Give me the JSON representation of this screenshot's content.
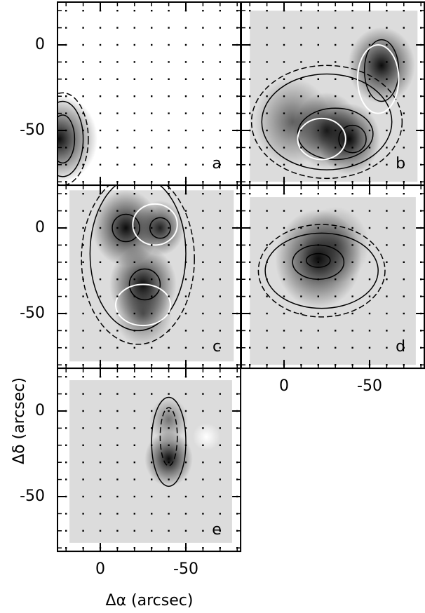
{
  "chart_data": {
    "type": "image-grid",
    "xlabel": "Δα (arcsec)",
    "ylabel": "Δδ (arcsec)",
    "xlim": [
      25,
      -82
    ],
    "ylim": [
      -82,
      25
    ],
    "xticks": [
      0,
      -50
    ],
    "yticks": [
      0,
      -50
    ],
    "xminorticks": [
      20,
      10,
      0,
      -10,
      -20,
      -30,
      -40,
      -50,
      -60,
      -70,
      -80
    ],
    "yminorticks": [
      20,
      10,
      0,
      -10,
      -20,
      -30,
      -40,
      -50,
      -60,
      -70,
      -80
    ],
    "grid": "dots",
    "panels": [
      {
        "label": "a",
        "x_tick_labels": false,
        "y_tick_labels": true
      },
      {
        "label": "b",
        "x_tick_labels": false,
        "y_tick_labels": false
      },
      {
        "label": "c",
        "x_tick_labels": false,
        "y_tick_labels": true
      },
      {
        "label": "d",
        "x_tick_labels": true,
        "y_tick_labels": false
      },
      {
        "label": "e",
        "x_tick_labels": true,
        "y_tick_labels": true
      }
    ]
  }
}
